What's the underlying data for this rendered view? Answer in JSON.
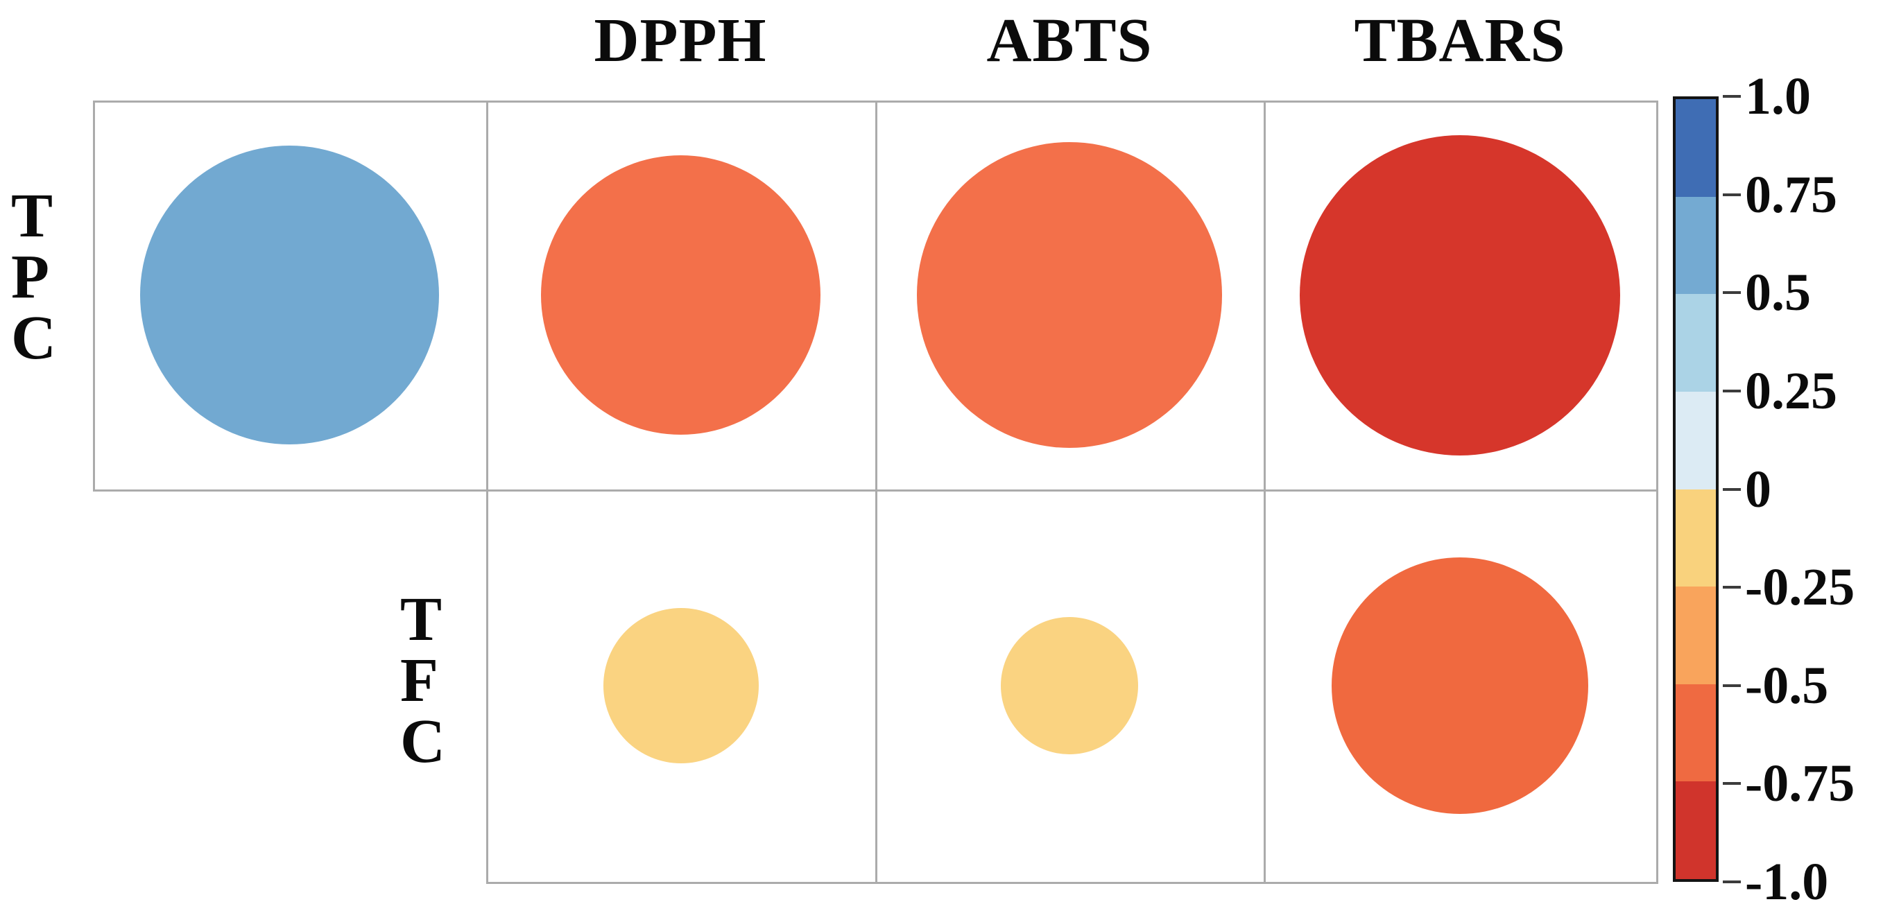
{
  "title": "",
  "chart_data": {
    "type": "heatmap",
    "subtype": "correlation-bubble-matrix (corrplot-style: circle size and color encode correlation)",
    "rows": [
      "TPC",
      "TFC"
    ],
    "columns": [
      "",
      "DPPH",
      "ABTS",
      "TBARS"
    ],
    "values_are_estimates": true,
    "cells": [
      {
        "ri": 0,
        "ci": 0,
        "row": "TPC",
        "col": "",
        "value": 0.6,
        "color": "#72a9d1",
        "size_frac": 0.771
      },
      {
        "ri": 0,
        "ci": 1,
        "row": "TPC",
        "col": "DPPH",
        "value": -0.52,
        "color": "#f3704a",
        "size_frac": 0.721
      },
      {
        "ri": 0,
        "ci": 2,
        "row": "TPC",
        "col": "ABTS",
        "value": -0.62,
        "color": "#f3704a",
        "size_frac": 0.786
      },
      {
        "ri": 0,
        "ci": 3,
        "row": "TPC",
        "col": "TBARS",
        "value": -0.78,
        "color": "#d6362b",
        "size_frac": 0.825
      },
      {
        "ri": 1,
        "ci": 1,
        "row": "TFC",
        "col": "DPPH",
        "value": -0.16,
        "color": "#fad381",
        "size_frac": 0.4
      },
      {
        "ri": 1,
        "ci": 2,
        "row": "TFC",
        "col": "ABTS",
        "value": -0.13,
        "color": "#fad381",
        "size_frac": 0.354
      },
      {
        "ri": 1,
        "ci": 3,
        "row": "TFC",
        "col": "TBARS",
        "value": -0.5,
        "color": "#f0693f",
        "size_frac": 0.661
      }
    ],
    "colorbar": {
      "position": "right",
      "range": [
        1.0,
        -1.0
      ],
      "ticks": [
        "1.0",
        "0.75",
        "0.5",
        "0.25",
        "0",
        "-0.25",
        "-0.5",
        "-0.75",
        "-1.0"
      ],
      "band_colors": [
        "#3f6db4",
        "#74aad2",
        "#abd3e6",
        "#dcebf4",
        "#f9d27d",
        "#f9a45c",
        "#ef6a41",
        "#d0342c"
      ]
    },
    "grid": true,
    "grid_color": "#ababab",
    "background": "#ffffff"
  }
}
